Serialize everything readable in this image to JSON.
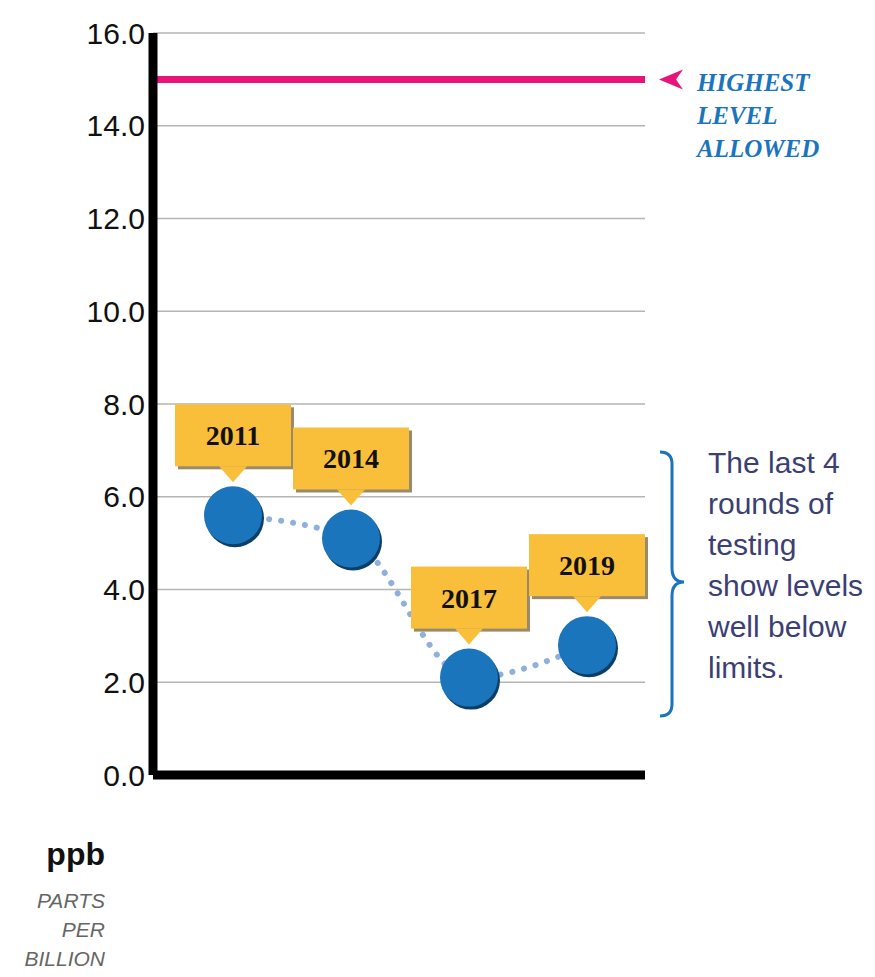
{
  "chart_data": {
    "type": "line",
    "categories": [
      "2011",
      "2014",
      "2017",
      "2019"
    ],
    "values": [
      5.6,
      5.1,
      2.1,
      2.8
    ],
    "color": "#1a75bd",
    "marker": "circle",
    "line_style": "dotted",
    "ylim": [
      0,
      16
    ],
    "yticks": [
      {
        "value": 0,
        "label": "0.0"
      },
      {
        "value": 2,
        "label": "2.0"
      },
      {
        "value": 4,
        "label": "4.0"
      },
      {
        "value": 6,
        "label": "6.0"
      },
      {
        "value": 8,
        "label": "8.0"
      },
      {
        "value": 10,
        "label": "10.0"
      },
      {
        "value": 12,
        "label": "12.0"
      },
      {
        "value": 14,
        "label": "14.0"
      },
      {
        "value": 16,
        "label": "16.0"
      }
    ],
    "grid": true,
    "tick_labels": "y",
    "y_label": "ppb",
    "y_label_note": "PARTS PER BILLION",
    "reference_line": {
      "value": 15,
      "label": "HIGHEST LEVEL ALLOWED"
    },
    "annotation": "The last 4 rounds of testing show levels well below limits."
  }
}
